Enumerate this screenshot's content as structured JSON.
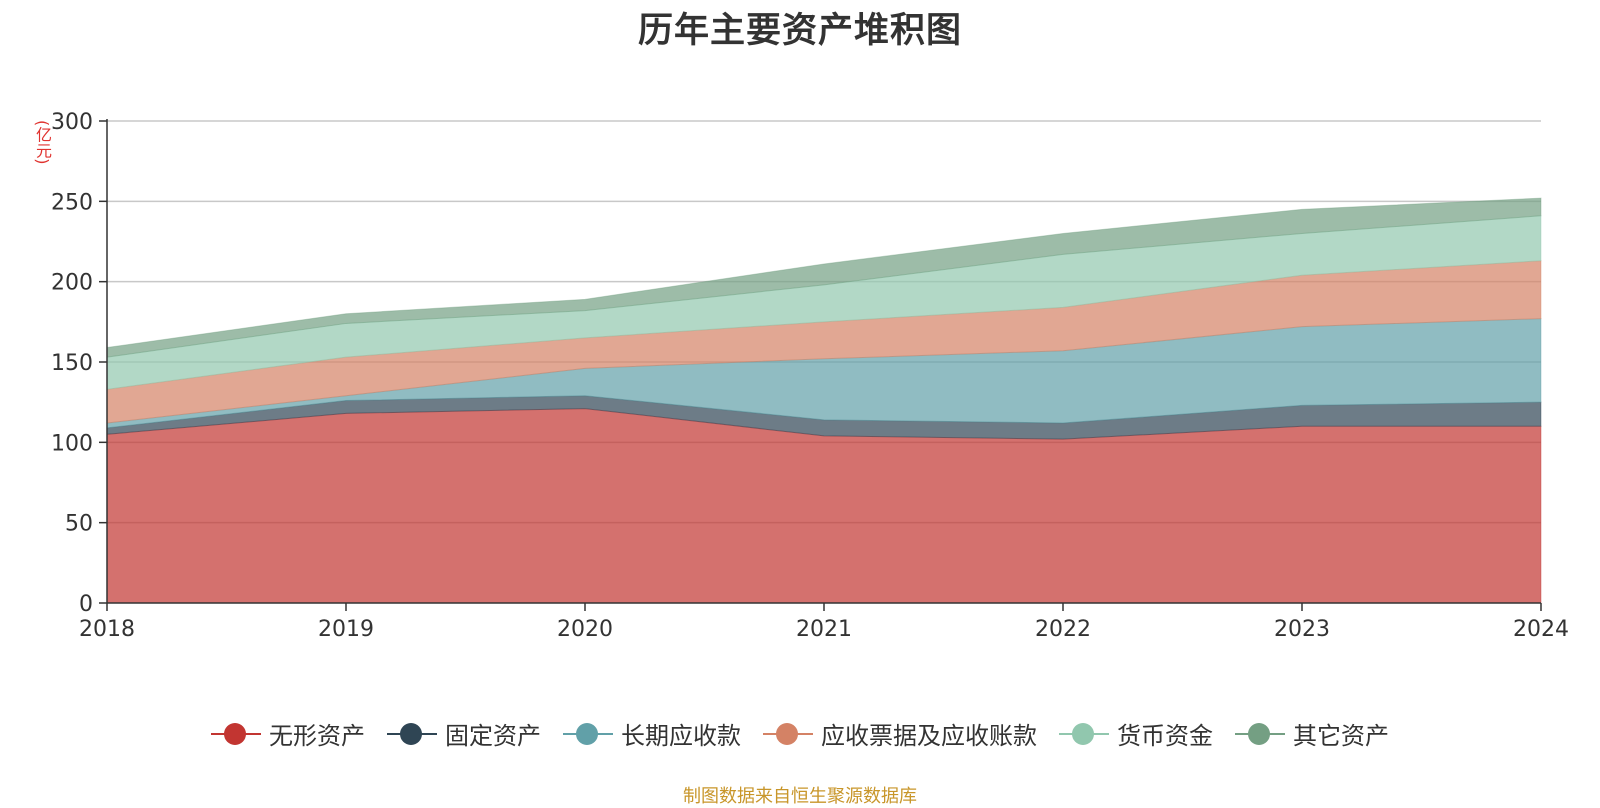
{
  "title": "历年主要资产堆积图",
  "unit_label": "(亿元)",
  "source": "制图数据来自恒生聚源数据库",
  "chart_data": {
    "type": "area",
    "stacked": true,
    "title": "历年主要资产堆积图",
    "ylabel": "(亿元)",
    "ylim": [
      0,
      300
    ],
    "yticks": [
      0,
      50,
      100,
      150,
      200,
      250,
      300
    ],
    "grid": true,
    "legend_position": "bottom",
    "x": [
      "2018",
      "2019",
      "2020",
      "2021",
      "2022",
      "2023",
      "2024"
    ],
    "series": [
      {
        "name": "无形资产",
        "color": "#c23531",
        "values": [
          105,
          118,
          121,
          104,
          102,
          110,
          110
        ]
      },
      {
        "name": "固定资产",
        "color": "#2f4554",
        "values": [
          4,
          8,
          8,
          10,
          10,
          13,
          15
        ]
      },
      {
        "name": "长期应收款",
        "color": "#61a0a8",
        "values": [
          3,
          3,
          17,
          38,
          45,
          49,
          52
        ]
      },
      {
        "name": "应收票据及应收账款",
        "color": "#d48265",
        "values": [
          21,
          24,
          19,
          23,
          27,
          32,
          36
        ]
      },
      {
        "name": "货币资金",
        "color": "#91c7ae",
        "values": [
          20,
          21,
          17,
          23,
          33,
          26,
          28
        ]
      },
      {
        "name": "其它资产",
        "color": "#749f83",
        "values": [
          6,
          6,
          7,
          13,
          13,
          15,
          11
        ]
      }
    ]
  }
}
